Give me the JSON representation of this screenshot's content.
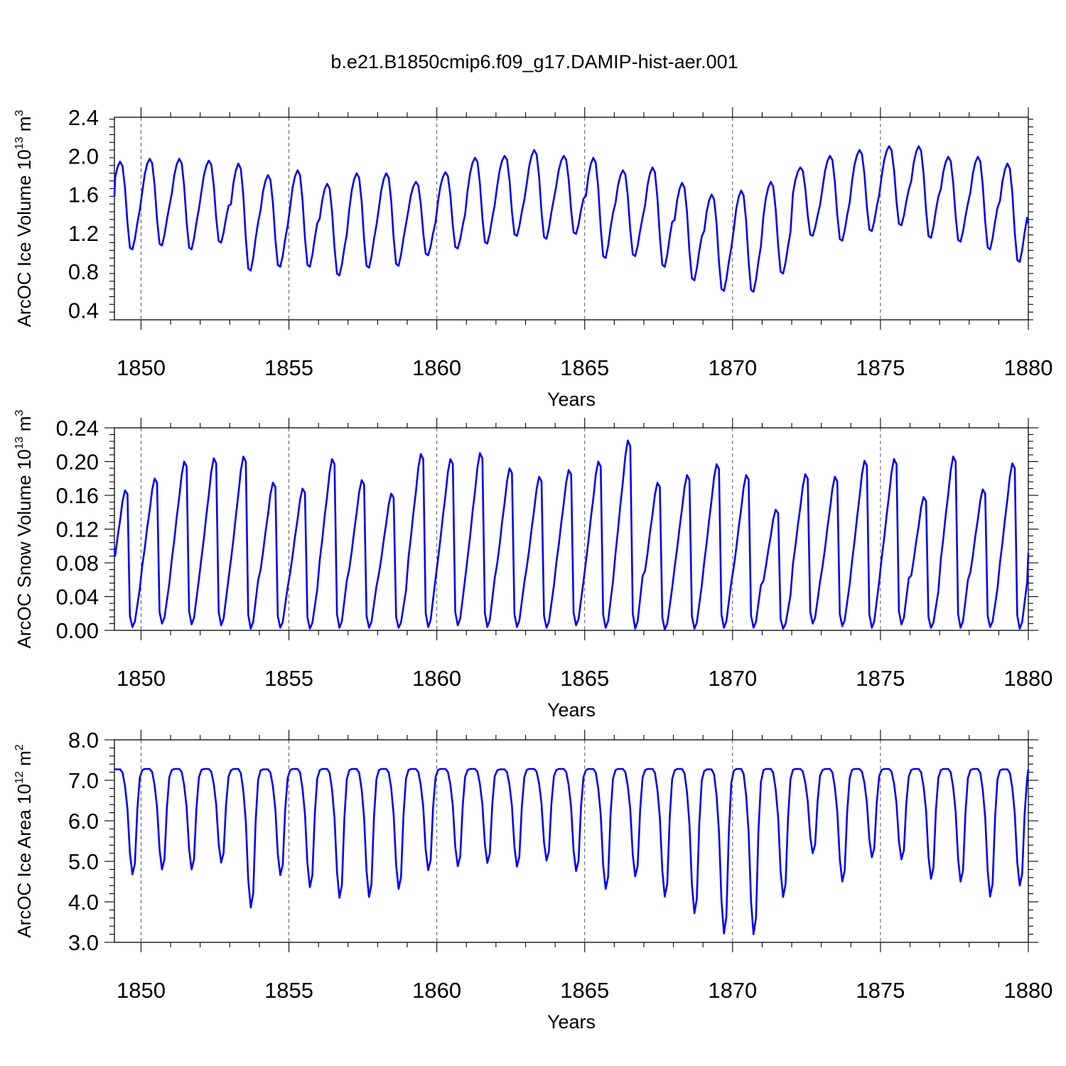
{
  "title": "b.e21.B1850cmip6.f09_g17.DAMIP-hist-aer.001",
  "chart_data": [
    {
      "type": "line",
      "ylabel": "ArcOC Ice Volume 10",
      "ylabel_exp": "13",
      "ylabel_unit": " m",
      "ylabel_unit_exp": "3",
      "xlabel": "Years",
      "xlim": [
        1849.1,
        1880.0
      ],
      "ylim": [
        0.3,
        2.4
      ],
      "yticks": [
        "0.4",
        "0.8",
        "1.2",
        "1.6",
        "2.0",
        "2.4"
      ],
      "xticks": [
        "1850",
        "1855",
        "1860",
        "1865",
        "1870",
        "1875",
        "1880"
      ],
      "grid": "dashed vertical at labeled years",
      "series": [
        {
          "color": "#0000ff",
          "x0": 1849.0,
          "step_months": 1,
          "seasonal_max": [
            1.94,
            1.97,
            1.97,
            1.95,
            1.92,
            1.8,
            1.85,
            1.71,
            1.82,
            1.82,
            1.73,
            1.83,
            1.98,
            2.0,
            2.06,
            2.0,
            1.98,
            1.85,
            1.88,
            1.72,
            1.6,
            1.64,
            1.73,
            1.88,
            2.0,
            2.06,
            2.1,
            2.1,
            1.99,
            1.99,
            1.92
          ],
          "seasonal_min": [
            1.03,
            1.07,
            1.03,
            1.1,
            0.81,
            0.85,
            0.85,
            0.76,
            0.84,
            0.86,
            0.97,
            1.04,
            1.09,
            1.17,
            1.14,
            1.19,
            0.94,
            0.96,
            0.85,
            0.71,
            0.6,
            0.59,
            0.78,
            1.17,
            1.12,
            1.22,
            1.28,
            1.15,
            1.11,
            1.03,
            0.9
          ],
          "start_value": 1.58,
          "end_value": 1.3
        }
      ]
    },
    {
      "type": "line",
      "ylabel": "ArcOC Snow Volume 10",
      "ylabel_exp": "13",
      "ylabel_unit": " m",
      "ylabel_unit_exp": "3",
      "xlabel": "Years",
      "xlim": [
        1849.1,
        1880.0
      ],
      "ylim": [
        0.0,
        0.24
      ],
      "yticks": [
        "0.00",
        "0.04",
        "0.08",
        "0.12",
        "0.16",
        "0.20",
        "0.24"
      ],
      "xticks": [
        "1850",
        "1855",
        "1860",
        "1865",
        "1870",
        "1875",
        "1880"
      ],
      "grid": "dashed vertical at labeled years",
      "series": [
        {
          "color": "#0000ff",
          "x0": 1849.0,
          "step_months": 1,
          "seasonal_max": [
            0.166,
            0.18,
            0.2,
            0.204,
            0.206,
            0.175,
            0.168,
            0.203,
            0.178,
            0.162,
            0.209,
            0.203,
            0.21,
            0.192,
            0.182,
            0.19,
            0.2,
            0.225,
            0.175,
            0.184,
            0.197,
            0.184,
            0.143,
            0.185,
            0.182,
            0.201,
            0.203,
            0.158,
            0.206,
            0.167,
            0.198
          ],
          "seasonal_min": [
            0.004,
            0.008,
            0.007,
            0.006,
            0.002,
            0.003,
            0.002,
            0.003,
            0.003,
            0.003,
            0.004,
            0.006,
            0.004,
            0.004,
            0.003,
            0.006,
            0.003,
            0.002,
            0.001,
            0.002,
            0.003,
            0.003,
            0.002,
            0.008,
            0.005,
            0.003,
            0.007,
            0.003,
            0.003,
            0.004,
            0.002
          ],
          "start_value": 0.098,
          "end_value": 0.092
        }
      ]
    },
    {
      "type": "line",
      "ylabel": "ArcOC Ice Area 10",
      "ylabel_exp": "12",
      "ylabel_unit": " m",
      "ylabel_unit_exp": "2",
      "xlabel": "Years",
      "xlim": [
        1849.1,
        1880.0
      ],
      "ylim": [
        3.0,
        8.0
      ],
      "yticks": [
        "3.0",
        "4.0",
        "5.0",
        "6.0",
        "7.0",
        "8.0"
      ],
      "xticks": [
        "1850",
        "1855",
        "1860",
        "1865",
        "1870",
        "1875",
        "1880"
      ],
      "grid": "dashed vertical at labeled years",
      "series": [
        {
          "color": "#0000ff",
          "x0": 1849.0,
          "step_months": 1,
          "seasonal_max": [
            7.27,
            7.28,
            7.28,
            7.28,
            7.28,
            7.27,
            7.28,
            7.28,
            7.28,
            7.28,
            7.28,
            7.28,
            7.28,
            7.27,
            7.28,
            7.28,
            7.28,
            7.28,
            7.28,
            7.28,
            7.27,
            7.28,
            7.28,
            7.28,
            7.28,
            7.28,
            7.28,
            7.28,
            7.28,
            7.28,
            7.27
          ],
          "seasonal_min": [
            4.68,
            4.8,
            4.8,
            4.97,
            3.86,
            4.66,
            4.36,
            4.1,
            4.12,
            4.32,
            4.78,
            4.88,
            4.96,
            4.87,
            5.02,
            4.76,
            4.32,
            4.63,
            4.13,
            3.72,
            3.22,
            3.2,
            4.12,
            5.2,
            4.5,
            5.1,
            5.05,
            4.57,
            4.5,
            4.13,
            4.4
          ],
          "start_value": 7.28,
          "end_value": 7.27
        }
      ]
    }
  ]
}
